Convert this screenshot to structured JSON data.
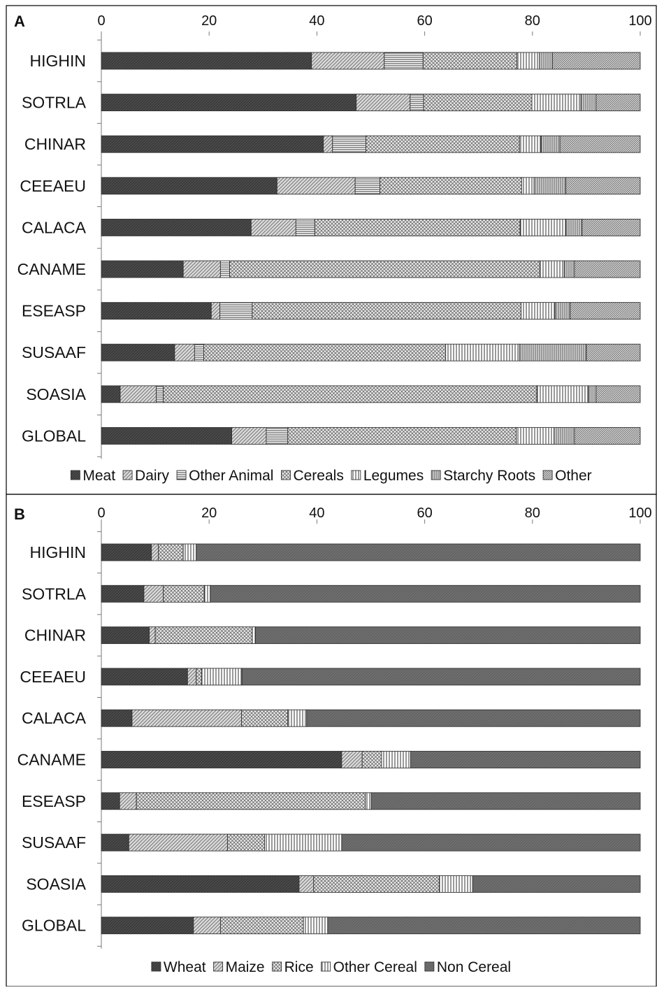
{
  "chart_data": [
    {
      "panel_label": "A",
      "type": "bar",
      "orientation": "horizontal",
      "stacked": true,
      "xlim": [
        0,
        100
      ],
      "xticks": [
        0,
        20,
        40,
        60,
        80,
        100
      ],
      "x_axis_position": "top",
      "legend_position": "bottom",
      "categories": [
        "HIGHIN",
        "SOTRLA",
        "CHINAR",
        "CEEAEU",
        "CALACA",
        "CANAME",
        "ESEASP",
        "SUSAAF",
        "SOASIA",
        "GLOBAL"
      ],
      "series": [
        {
          "name": "Meat",
          "pattern": "solid-dark",
          "values": [
            39,
            47.3,
            41.2,
            32.6,
            27.8,
            15.2,
            20.4,
            13.6,
            3.5,
            24.2
          ]
        },
        {
          "name": "Dairy",
          "pattern": "diagonal",
          "values": [
            13.5,
            10,
            1.7,
            14.5,
            8.3,
            6.9,
            1.6,
            3.7,
            6.7,
            6.4
          ]
        },
        {
          "name": "Other Animal",
          "pattern": "horizontal",
          "values": [
            7.2,
            2.5,
            6.2,
            4.6,
            3.5,
            1.7,
            6,
            1.7,
            1.3,
            4
          ]
        },
        {
          "name": "Cereals",
          "pattern": "crosshatch",
          "values": [
            17.4,
            20.1,
            28.5,
            26.3,
            38.1,
            57.6,
            49.9,
            44.9,
            69.3,
            42.4
          ]
        },
        {
          "name": "Legumes",
          "pattern": "vertical",
          "values": [
            4.2,
            9.1,
            4,
            2.3,
            8.5,
            4.5,
            6.3,
            13.7,
            9.6,
            7
          ]
        },
        {
          "name": "Starchy Roots",
          "pattern": "vertical-fine",
          "values": [
            2.4,
            2.8,
            3.5,
            5.9,
            3,
            1.9,
            2.8,
            12.4,
            1.4,
            3.8
          ]
        },
        {
          "name": "Other",
          "pattern": "diagonal-fine",
          "values": [
            16.3,
            8.2,
            14.9,
            13.8,
            10.8,
            12.2,
            13,
            10,
            8.2,
            12.2
          ]
        }
      ]
    },
    {
      "panel_label": "B",
      "type": "bar",
      "orientation": "horizontal",
      "stacked": true,
      "xlim": [
        0,
        100
      ],
      "xticks": [
        0,
        20,
        40,
        60,
        80,
        100
      ],
      "x_axis_position": "top",
      "legend_position": "bottom",
      "categories": [
        "HIGHIN",
        "SOTRLA",
        "CHINAR",
        "CEEAEU",
        "CALACA",
        "CANAME",
        "ESEASP",
        "SUSAAF",
        "SOASIA",
        "GLOBAL"
      ],
      "series": [
        {
          "name": "Wheat",
          "pattern": "solid-dark",
          "values": [
            9.3,
            7.9,
            8.9,
            16,
            5.7,
            44.6,
            3.4,
            5.1,
            36.7,
            17.1
          ]
        },
        {
          "name": "Maize",
          "pattern": "diagonal",
          "values": [
            1.3,
            3.6,
            1.1,
            1.6,
            20.3,
            3.8,
            3.1,
            18.3,
            2.7,
            5
          ]
        },
        {
          "name": "Rice",
          "pattern": "crosshatch",
          "values": [
            4.6,
            7.6,
            18,
            1,
            8.6,
            3.6,
            42.5,
            6.9,
            23.3,
            15.4
          ]
        },
        {
          "name": "Other Cereal",
          "pattern": "vertical",
          "values": [
            2.4,
            1.1,
            0.6,
            7.5,
            3.5,
            5.4,
            1.1,
            14.3,
            6.2,
            4.5
          ]
        },
        {
          "name": "Non Cereal",
          "pattern": "solid-medium",
          "values": [
            82.4,
            79.8,
            71.4,
            73.9,
            61.9,
            42.6,
            49.9,
            55.4,
            31.1,
            58
          ]
        }
      ]
    }
  ]
}
